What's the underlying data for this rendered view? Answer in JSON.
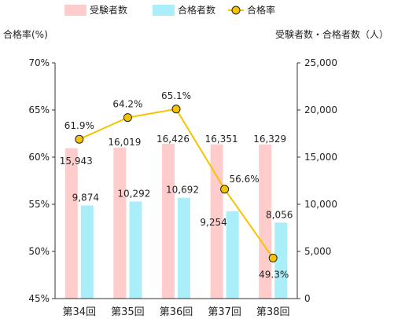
{
  "chart_data": {
    "type": "bar",
    "categories": [
      "第34回",
      "第35回",
      "第36回",
      "第37回",
      "第38回"
    ],
    "series": [
      {
        "name": "受験者数",
        "type": "bar",
        "axis": "right",
        "color": "#ffcccc",
        "values": [
          15943,
          16019,
          16426,
          16351,
          16329
        ],
        "labels": [
          "15,943",
          "16,019",
          "16,426",
          "16,351",
          "16,329"
        ]
      },
      {
        "name": "合格者数",
        "type": "bar",
        "axis": "right",
        "color": "#aaeefa",
        "values": [
          9874,
          10292,
          10692,
          9254,
          8056
        ],
        "labels": [
          "9,874",
          "10,292",
          "10,692",
          "9,254",
          "8,056"
        ]
      },
      {
        "name": "合格率",
        "type": "line",
        "axis": "left",
        "color": "#f5c400",
        "marker_fill": "#f5c400",
        "marker_stroke": "#222222",
        "values": [
          61.9,
          64.2,
          65.1,
          56.6,
          49.3
        ],
        "labels": [
          "61.9%",
          "64.2%",
          "65.1%",
          "56.6%",
          "49.3%"
        ]
      }
    ],
    "y_left": {
      "title": "合格率(%)",
      "ylim": [
        45,
        70
      ],
      "ticks": [
        70,
        65,
        60,
        55,
        50,
        45
      ],
      "tick_labels": [
        "70%",
        "65%",
        "60%",
        "55%",
        "50%",
        "45%"
      ]
    },
    "y_right": {
      "title": "受験者数・合格者数（人）",
      "ylim": [
        0,
        25000
      ],
      "ticks": [
        25000,
        20000,
        15000,
        10000,
        5000,
        0
      ],
      "tick_labels": [
        "25,000",
        "20,000",
        "15,000",
        "10,000",
        "5,000",
        "0"
      ]
    },
    "legend": "top-center",
    "grid": false
  }
}
